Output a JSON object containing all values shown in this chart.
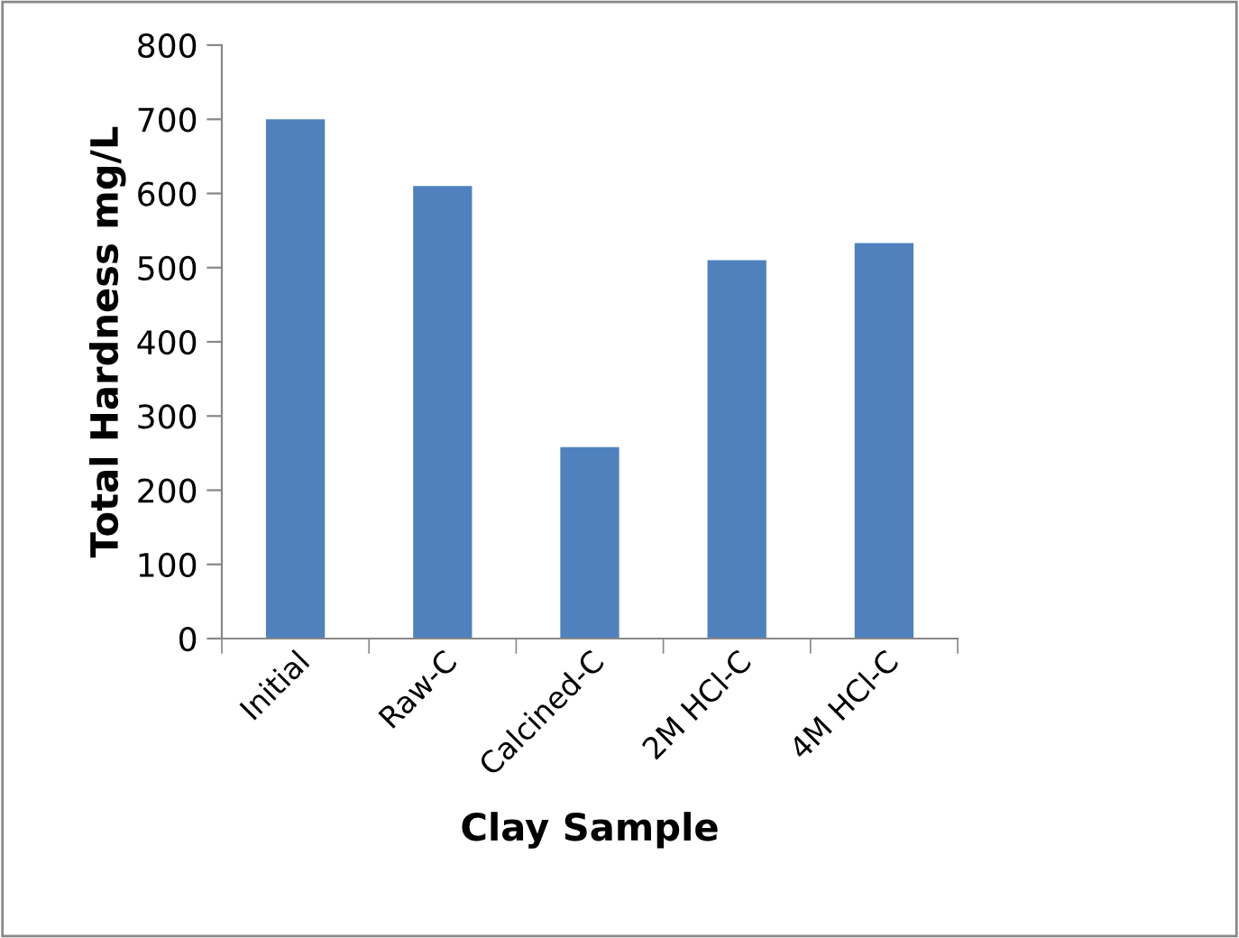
{
  "chart_data": {
    "type": "bar",
    "xlabel": "Clay Sample",
    "ylabel": "Total Hardness mg/L",
    "categories": [
      "Initial",
      "Raw-C",
      "Calcined-C",
      "2M HCl-C",
      "4M HCl-C"
    ],
    "values": [
      700,
      610,
      258,
      510,
      533
    ],
    "color": "#4f81bd",
    "ylim": [
      0,
      800
    ],
    "yticks": [
      0,
      100,
      200,
      300,
      400,
      500,
      600,
      700,
      800
    ],
    "grid": false,
    "legend": false
  }
}
